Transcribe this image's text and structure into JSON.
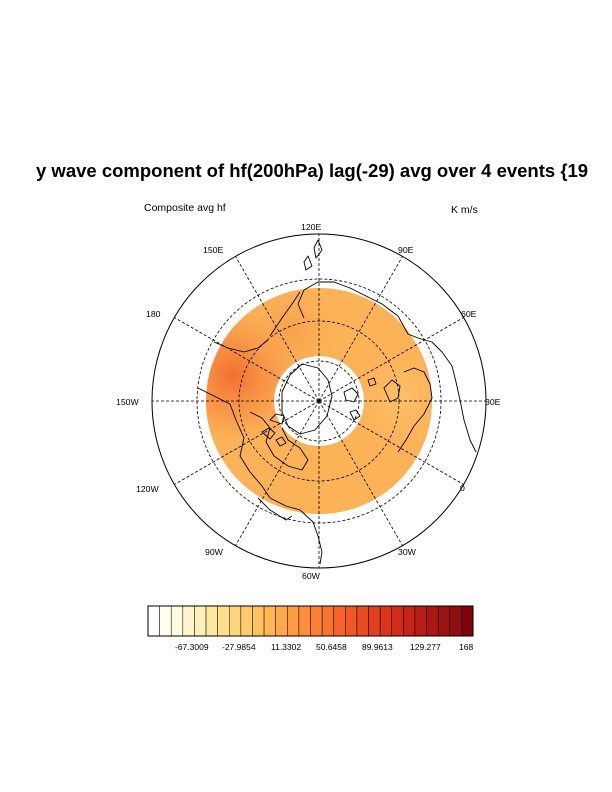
{
  "title": "y wave component of hf(200hPa) lag(-29) avg over 4 events {19",
  "left_string": "Composite avg hf",
  "right_string": "K m/s",
  "longitude_labels": [
    "120E",
    "90E",
    "60E",
    "30E",
    "0",
    "30W",
    "60W",
    "90W",
    "120W",
    "150W",
    "180",
    "150E"
  ],
  "colorbar": {
    "labels": [
      "-67.3009",
      "-27.9854",
      "11.3302",
      "50.6458",
      "89.9613",
      "129.277",
      "168"
    ],
    "colors": [
      "#ffffff",
      "#fffff0",
      "#fffbe0",
      "#fff5cc",
      "#ffefb8",
      "#ffe8a2",
      "#ffe08f",
      "#ffd780",
      "#ffcd70",
      "#ffc262",
      "#ffb656",
      "#ffa94c",
      "#fe9c44",
      "#fd8e3d",
      "#fb8036",
      "#f87230",
      "#f4642b",
      "#f05726",
      "#e94b22",
      "#e2401f",
      "#d9361c",
      "#cf2d1a",
      "#c42518",
      "#b81e16",
      "#ab1814",
      "#9d1312",
      "#8f0f10",
      "#80000e"
    ]
  },
  "colors": {
    "field_main": "#fdb35a",
    "field_light": "#ffc46a",
    "field_strong": "#f57e3a"
  }
}
